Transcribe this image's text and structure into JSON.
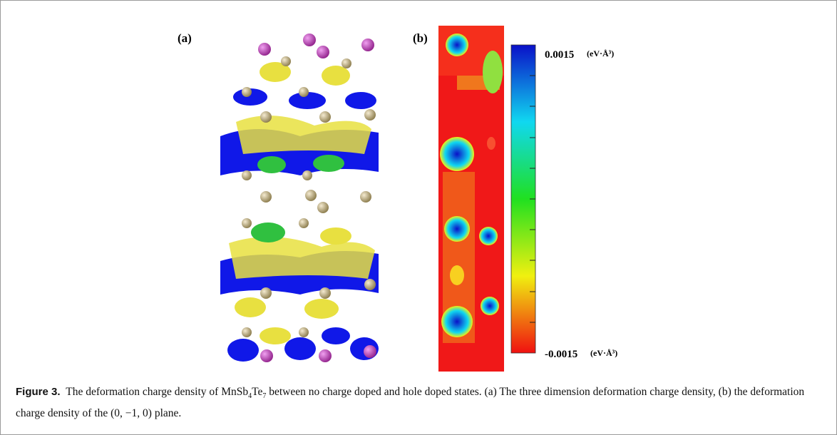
{
  "figure": {
    "panel_a_label": "(a)",
    "panel_b_label": "(b)",
    "colorbar": {
      "top": {
        "value": "0.0015",
        "unit": "(eV·Å³)"
      },
      "bottom": {
        "value": "-0.0015",
        "unit": "(eV·Å³)"
      }
    },
    "caption": {
      "label": "Figure 3.",
      "text_start": "The deformation charge density of ",
      "formula": [
        "MnSb",
        "4",
        "Te",
        "7"
      ],
      "text_end": " between no charge doped and hole doped states. (a) The three dimension deformation charge density, (b) the deformation charge density of the (0, −1, 0) plane."
    }
  }
}
